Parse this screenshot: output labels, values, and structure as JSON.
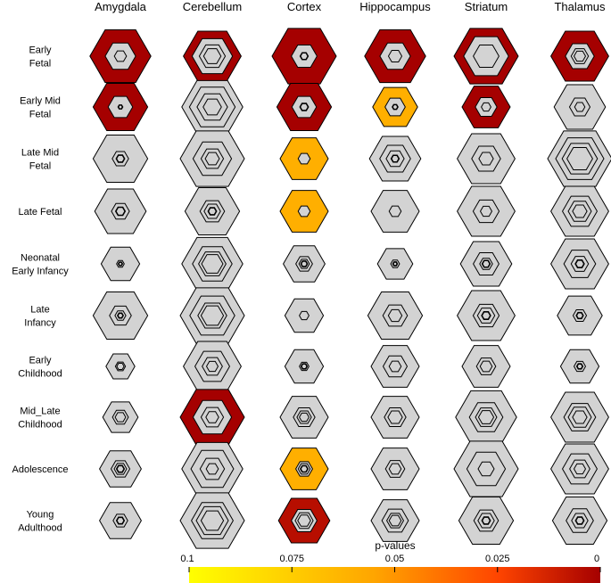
{
  "chart_data": {
    "type": "heatmap",
    "columns": [
      "Amygdala",
      "Cerebellum",
      "Cortex",
      "Hippocampus",
      "Striatum",
      "Thalamus"
    ],
    "rows": [
      [
        "Early",
        "Fetal"
      ],
      [
        "Early Mid",
        "Fetal"
      ],
      [
        "Late Mid",
        "Fetal"
      ],
      [
        "Late Fetal"
      ],
      [
        "Neonatal",
        "Early Infancy"
      ],
      [
        "Late",
        "Infancy"
      ],
      [
        "Early",
        "Childhood"
      ],
      [
        "Mid_Late",
        "Childhood"
      ],
      [
        "Adolescence"
      ],
      [
        "Young",
        "Adulthood"
      ]
    ],
    "p_values": [
      [
        0.0,
        0.0,
        0.0,
        0.0,
        0.0,
        0.0
      ],
      [
        0.0,
        null,
        0.0,
        0.06,
        0.0,
        null
      ],
      [
        null,
        null,
        0.06,
        null,
        null,
        null
      ],
      [
        null,
        null,
        0.06,
        null,
        null,
        null
      ],
      [
        null,
        null,
        null,
        null,
        null,
        null
      ],
      [
        null,
        null,
        null,
        null,
        null,
        null
      ],
      [
        null,
        null,
        null,
        null,
        null,
        null
      ],
      [
        null,
        0.0,
        null,
        null,
        null,
        null
      ],
      [
        null,
        null,
        0.06,
        null,
        null,
        null
      ],
      [
        null,
        null,
        0.005,
        null,
        null,
        null
      ]
    ],
    "outer_size": [
      [
        0.95,
        0.9,
        1.0,
        0.95,
        1.0,
        0.9
      ],
      [
        0.85,
        0.95,
        0.85,
        0.7,
        0.75,
        0.8
      ],
      [
        0.85,
        1.0,
        0.75,
        0.8,
        0.9,
        1.0
      ],
      [
        0.8,
        0.85,
        0.75,
        0.75,
        0.9,
        0.9
      ],
      [
        0.6,
        0.95,
        0.65,
        0.55,
        0.8,
        0.9
      ],
      [
        0.85,
        1.0,
        0.6,
        0.85,
        0.9,
        0.7
      ],
      [
        0.45,
        0.9,
        0.6,
        0.75,
        0.75,
        0.6
      ],
      [
        0.55,
        1.0,
        0.75,
        0.75,
        0.95,
        0.9
      ],
      [
        0.65,
        0.95,
        0.75,
        0.75,
        1.0,
        0.9
      ],
      [
        0.65,
        1.0,
        0.8,
        0.75,
        0.85,
        0.85
      ]
    ],
    "inner_rings": [
      [
        [
          0.5,
          0.2
        ],
        [
          0.7,
          0.45,
          0.3
        ],
        [
          0.4,
          0.12
        ],
        [
          0.5,
          0.22
        ],
        [
          0.7,
          0.4
        ],
        [
          0.5,
          0.3,
          0.2
        ]
      ],
      [
        [
          0.45,
          0.08
        ],
        [
          0.75,
          0.5,
          0.3
        ],
        [
          0.45,
          0.15
        ],
        [
          0.45,
          0.12
        ],
        [
          0.45,
          0.2
        ],
        [
          0.4,
          0.2
        ]
      ],
      [
        [
          0.3,
          0.15
        ],
        [
          0.6,
          0.35,
          0.22
        ],
        [
          0.25
        ],
        [
          0.6,
          0.35,
          0.15
        ],
        [
          0.5,
          0.25
        ],
        [
          0.75,
          0.55,
          0.4
        ]
      ],
      [
        [
          0.35,
          0.18
        ],
        [
          0.45,
          0.3,
          0.15
        ],
        [
          0.25
        ],
        [
          0.25
        ],
        [
          0.45,
          0.2
        ],
        [
          0.6,
          0.4,
          0.25
        ]
      ],
      [
        [
          0.2,
          0.1
        ],
        [
          0.65,
          0.45,
          0.35
        ],
        [
          0.4,
          0.25,
          0.15
        ],
        [
          0.25,
          0.12
        ],
        [
          0.5,
          0.25,
          0.15
        ],
        [
          0.55,
          0.3,
          0.15
        ]
      ],
      [
        [
          0.4,
          0.2,
          0.1
        ],
        [
          0.7,
          0.45,
          0.35
        ],
        [
          0.25
        ],
        [
          0.45,
          0.25
        ],
        [
          0.45,
          0.3,
          0.15
        ],
        [
          0.3,
          0.15
        ]
      ],
      [
        [
          0.35,
          0.25
        ],
        [
          0.6,
          0.35,
          0.2
        ],
        [
          0.25,
          0.15
        ],
        [
          0.5,
          0.25
        ],
        [
          0.4,
          0.25
        ],
        [
          0.3,
          0.15
        ]
      ],
      [
        [
          0.45,
          0.3
        ],
        [
          0.6,
          0.35,
          0.2
        ],
        [
          0.45,
          0.3,
          0.2
        ],
        [
          0.45,
          0.3
        ],
        [
          0.55,
          0.35,
          0.25
        ],
        [
          0.55,
          0.4,
          0.25
        ]
      ],
      [
        [
          0.45,
          0.3,
          0.18
        ],
        [
          0.7,
          0.4,
          0.2
        ],
        [
          0.35,
          0.25,
          0.15
        ],
        [
          0.4,
          0.25
        ],
        [
          0.6,
          0.25
        ],
        [
          0.6,
          0.35,
          0.2
        ]
      ],
      [
        [
          0.35,
          0.18
        ],
        [
          0.65,
          0.5,
          0.35
        ],
        [
          0.5,
          0.35,
          0.25
        ],
        [
          0.55,
          0.35,
          0.25
        ],
        [
          0.45,
          0.3,
          0.15
        ],
        [
          0.5,
          0.3,
          0.15
        ]
      ]
    ],
    "colorbar": {
      "title": "p-values",
      "ticks": [
        "0.1",
        "0.075",
        "0.05",
        "0.025",
        "0"
      ],
      "range": [
        0.1,
        0
      ],
      "colors": [
        "#ffff00",
        "#ffa500",
        "#ff4500",
        "#a50000"
      ]
    },
    "colors": {
      "not_significant": "#d3d3d3",
      "stroke": "#000000"
    }
  }
}
